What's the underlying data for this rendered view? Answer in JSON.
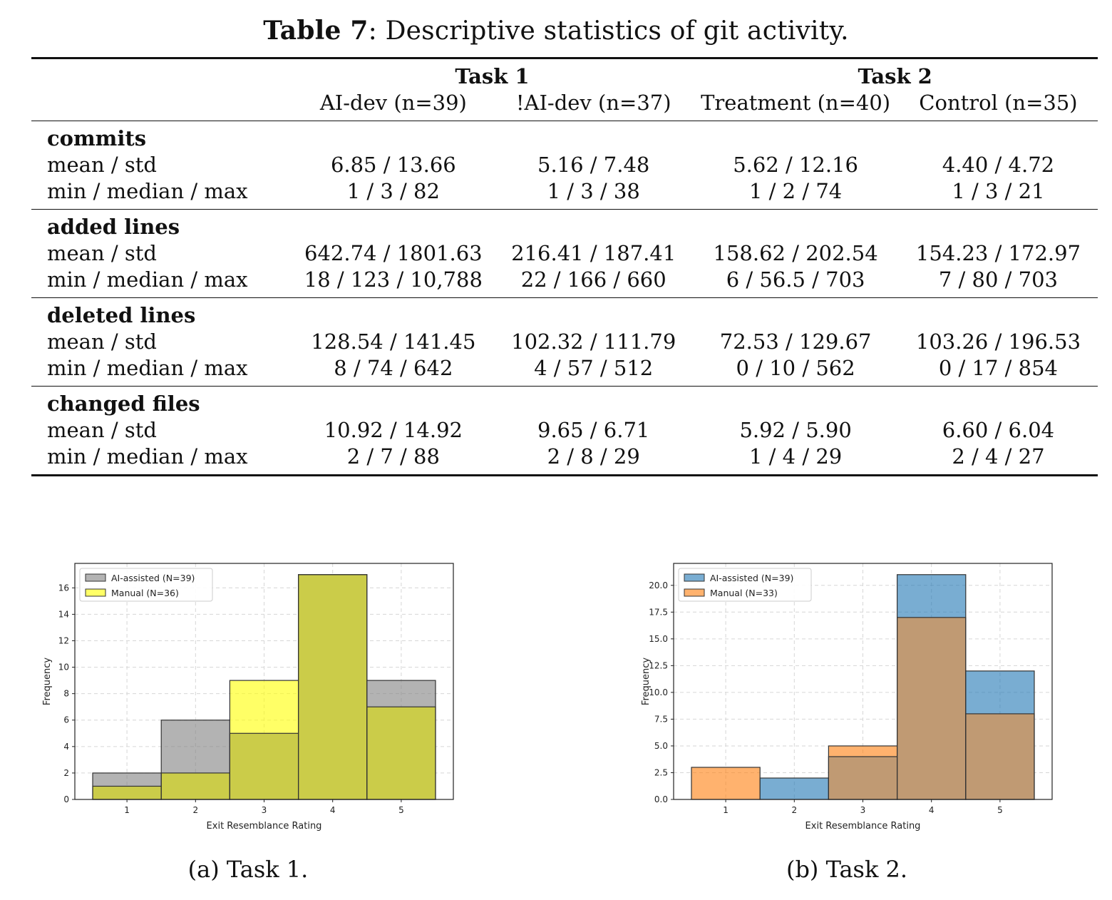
{
  "caption": {
    "label": "Table 7",
    "text": ": Descriptive statistics of git activity."
  },
  "table": {
    "groups": [
      "Task 1",
      "Task 2"
    ],
    "columns": [
      "AI-dev (n=39)",
      "!AI-dev (n=37)",
      "Treatment (n=40)",
      "Control (n=35)"
    ],
    "sections": [
      {
        "name": "commits",
        "rows": [
          {
            "label": "mean / std",
            "values": [
              "6.85 / 13.66",
              "5.16 / 7.48",
              "5.62 / 12.16",
              "4.40 / 4.72"
            ]
          },
          {
            "label": "min / median / max",
            "values": [
              "1 / 3 / 82",
              "1 / 3 / 38",
              "1 / 2 / 74",
              "1 / 3 / 21"
            ]
          }
        ]
      },
      {
        "name": "added lines",
        "rows": [
          {
            "label": "mean / std",
            "values": [
              "642.74 / 1801.63",
              "216.41 / 187.41",
              "158.62 / 202.54",
              "154.23 / 172.97"
            ]
          },
          {
            "label": "min / median / max",
            "values": [
              "18 / 123 / 10,788",
              "22 / 166 / 660",
              "6 / 56.5 / 703",
              "7 / 80 / 703"
            ]
          }
        ]
      },
      {
        "name": "deleted lines",
        "rows": [
          {
            "label": "mean / std",
            "values": [
              "128.54 / 141.45",
              "102.32 / 111.79",
              "72.53 / 129.67",
              "103.26 / 196.53"
            ]
          },
          {
            "label": "min / median / max",
            "values": [
              "8 / 74 / 642",
              "4 / 57 / 512",
              "0 / 10 / 562",
              "0 / 17 / 854"
            ]
          }
        ]
      },
      {
        "name": "changed files",
        "rows": [
          {
            "label": "mean / std",
            "values": [
              "10.92 / 14.92",
              "9.65 / 6.71",
              "5.92 / 5.90",
              "6.60 / 6.04"
            ]
          },
          {
            "label": "min / median / max",
            "values": [
              "2 / 7 / 88",
              "2 / 8 / 29",
              "1 / 4 / 29",
              "2 / 4 / 27"
            ]
          }
        ]
      }
    ]
  },
  "chart_data": [
    {
      "type": "bar",
      "subcaption": "(a) Task 1.",
      "xlabel": "Exit Resemblance Rating",
      "ylabel": "Frequency",
      "categories": [
        "1",
        "2",
        "3",
        "4",
        "5"
      ],
      "ylim": [
        0,
        17.85
      ],
      "yticks": [
        "0",
        "2",
        "4",
        "6",
        "8",
        "10",
        "12",
        "14",
        "16"
      ],
      "grid": true,
      "legend_position": "top-left",
      "series": [
        {
          "name": "AI-assisted (N=39)",
          "values": [
            2,
            6,
            5,
            17,
            9
          ],
          "color": "#808080"
        },
        {
          "name": "Manual (N=36)",
          "values": [
            1,
            2,
            9,
            17,
            7
          ],
          "color": "#ffff00"
        }
      ],
      "overlap_color": "#cbcc49"
    },
    {
      "type": "bar",
      "subcaption": "(b) Task 2.",
      "xlabel": "Exit Resemblance Rating",
      "ylabel": "Frequency",
      "categories": [
        "1",
        "2",
        "3",
        "4",
        "5"
      ],
      "ylim": [
        0,
        22.05
      ],
      "yticks": [
        "0.0",
        "2.5",
        "5.0",
        "7.5",
        "10.0",
        "12.5",
        "15.0",
        "17.5",
        "20.0"
      ],
      "grid": true,
      "legend_position": "top-left",
      "series": [
        {
          "name": "AI-assisted (N=39)",
          "values": [
            0,
            2,
            4,
            21,
            12
          ],
          "color": "#1f77b4"
        },
        {
          "name": "Manual (N=33)",
          "values": [
            3,
            0,
            5,
            17,
            8
          ],
          "color": "#ff7f0e"
        }
      ],
      "overlap_color": "#c09a73"
    }
  ]
}
